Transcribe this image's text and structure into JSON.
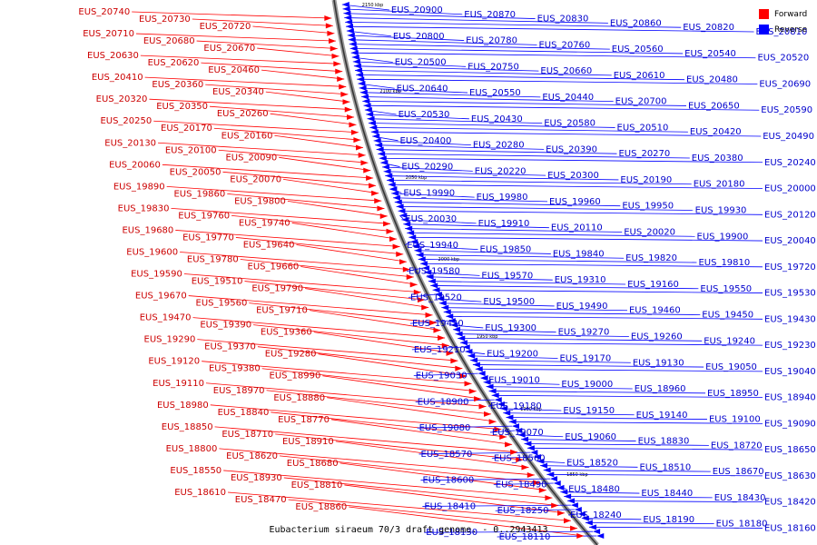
{
  "legend": [
    {
      "label": "Forward",
      "color": "#ff0000"
    },
    {
      "label": "Reverse",
      "color": "#0000ff"
    }
  ],
  "caption": "Eubacterium siraeum 70/3 draft genome. - 0..2943413",
  "kbp_marks": [
    "2150 kbp",
    "2100 kbp",
    "2050 kbp",
    "2000 kbp",
    "1950 kbp",
    "1900 kbp",
    "1850 kbp"
  ],
  "forward_genes": [
    "EUS_20740",
    "EUS_20730",
    "EUS_20720",
    "EUS_20710",
    "EUS_20680",
    "EUS_20670",
    "EUS_20630",
    "EUS_20620",
    "EUS_20460",
    "EUS_20410",
    "EUS_20360",
    "EUS_20340",
    "EUS_20320",
    "EUS_20350",
    "EUS_20260",
    "EUS_20250",
    "EUS_20170",
    "EUS_20160",
    "EUS_20130",
    "EUS_20100",
    "EUS_20090",
    "EUS_20060",
    "EUS_20050",
    "EUS_20070",
    "EUS_19890",
    "EUS_19860",
    "EUS_19800",
    "EUS_19830",
    "EUS_19760",
    "EUS_19740",
    "EUS_19680",
    "EUS_19770",
    "EUS_19640",
    "EUS_19600",
    "EUS_19780",
    "EUS_19660",
    "EUS_19590",
    "EUS_19510",
    "EUS_19790",
    "EUS_19670",
    "EUS_19560",
    "EUS_19710",
    "EUS_19470",
    "EUS_19390",
    "EUS_19360",
    "EUS_19290",
    "EUS_19370",
    "EUS_19280",
    "EUS_19120",
    "EUS_19380",
    "EUS_18990",
    "EUS_19110",
    "EUS_18970",
    "EUS_18880",
    "EUS_18980",
    "EUS_18840",
    "EUS_18770",
    "EUS_18850",
    "EUS_18710",
    "EUS_18910",
    "EUS_18800",
    "EUS_18620",
    "EUS_18680",
    "EUS_18550",
    "EUS_18930",
    "EUS_18810",
    "EUS_18610",
    "EUS_18470",
    "EUS_18860"
  ],
  "reverse_genes": [
    "EUS_20900",
    "EUS_20870",
    "EUS_20830",
    "EUS_20860",
    "EUS_20820",
    "EUS_20810",
    "EUS_20800",
    "EUS_20780",
    "EUS_20760",
    "EUS_20560",
    "EUS_20540",
    "EUS_20520",
    "EUS_20500",
    "EUS_20750",
    "EUS_20660",
    "EUS_20610",
    "EUS_20480",
    "EUS_20690",
    "EUS_20640",
    "EUS_20550",
    "EUS_20440",
    "EUS_20700",
    "EUS_20650",
    "EUS_20590",
    "EUS_20530",
    "EUS_20430",
    "EUS_20580",
    "EUS_20510",
    "EUS_20420",
    "EUS_20490",
    "EUS_20400",
    "EUS_20280",
    "EUS_20390",
    "EUS_20270",
    "EUS_20380",
    "EUS_20240",
    "EUS_20290",
    "EUS_20220",
    "EUS_20300",
    "EUS_20190",
    "EUS_20180",
    "EUS_20000",
    "EUS_19990",
    "EUS_19980",
    "EUS_19960",
    "EUS_19950",
    "EUS_19930",
    "EUS_20120",
    "EUS_20030",
    "EUS_19910",
    "EUS_20110",
    "EUS_20020",
    "EUS_19900",
    "EUS_20040",
    "EUS_19940",
    "EUS_19850",
    "EUS_19840",
    "EUS_19820",
    "EUS_19810",
    "EUS_19720",
    "EUS_19580",
    "EUS_19570",
    "EUS_19310",
    "EUS_19160",
    "EUS_19550",
    "EUS_19530",
    "EUS_19520",
    "EUS_19500",
    "EUS_19490",
    "EUS_19460",
    "EUS_19450",
    "EUS_19430",
    "EUS_19420",
    "EUS_19300",
    "EUS_19270",
    "EUS_19260",
    "EUS_19240",
    "EUS_19230",
    "EUS_19210",
    "EUS_19200",
    "EUS_19170",
    "EUS_19130",
    "EUS_19050",
    "EUS_19040",
    "EUS_19030",
    "EUS_19010",
    "EUS_19000",
    "EUS_18960",
    "EUS_18950",
    "EUS_18940",
    "EUS_18900",
    "EUS_19180",
    "EUS_19150",
    "EUS_19140",
    "EUS_19100",
    "EUS_19090",
    "EUS_19080",
    "EUS_19070",
    "EUS_19060",
    "EUS_18830",
    "EUS_18720",
    "EUS_18650",
    "EUS_18570",
    "EUS_18560",
    "EUS_18520",
    "EUS_18510",
    "EUS_18670",
    "EUS_18630",
    "EUS_18600",
    "EUS_18490",
    "EUS_18480",
    "EUS_18440",
    "EUS_18430",
    "EUS_18420",
    "EUS_18410",
    "EUS_18250",
    "EUS_18240",
    "EUS_18190",
    "EUS_18180",
    "EUS_18160",
    "EUS_18130",
    "EUS_18110"
  ]
}
